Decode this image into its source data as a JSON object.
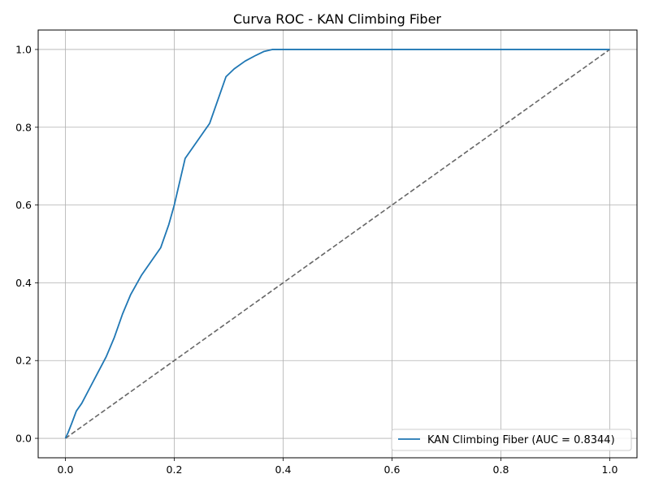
{
  "chart_data": {
    "type": "line",
    "title": "Curva ROC - KAN Climbing Fiber",
    "xlabel": "",
    "ylabel": "",
    "xlim": [
      -0.05,
      1.05
    ],
    "ylim": [
      -0.05,
      1.05
    ],
    "x_ticks": [
      "0.0",
      "0.2",
      "0.4",
      "0.6",
      "0.8",
      "1.0"
    ],
    "y_ticks": [
      "0.0",
      "0.2",
      "0.4",
      "0.6",
      "0.8",
      "1.0"
    ],
    "grid": true,
    "legend_position": "lower-right",
    "series": [
      {
        "name": "KAN Climbing Fiber (AUC = 0.8344)",
        "color": "#1f77b4",
        "style": "solid",
        "x": [
          0.0,
          0.005,
          0.012,
          0.02,
          0.03,
          0.045,
          0.06,
          0.075,
          0.09,
          0.105,
          0.12,
          0.14,
          0.16,
          0.175,
          0.19,
          0.2,
          0.21,
          0.22,
          0.235,
          0.25,
          0.265,
          0.275,
          0.285,
          0.295,
          0.31,
          0.33,
          0.35,
          0.365,
          0.38,
          1.0
        ],
        "y": [
          0.0,
          0.015,
          0.04,
          0.07,
          0.09,
          0.13,
          0.17,
          0.21,
          0.26,
          0.32,
          0.37,
          0.42,
          0.46,
          0.49,
          0.55,
          0.6,
          0.66,
          0.72,
          0.75,
          0.78,
          0.81,
          0.85,
          0.89,
          0.93,
          0.95,
          0.97,
          0.985,
          0.995,
          1.0,
          1.0
        ]
      },
      {
        "name": "",
        "color": "#666666",
        "style": "dashed",
        "x": [
          0.0,
          1.0
        ],
        "y": [
          0.0,
          1.0
        ]
      }
    ]
  }
}
